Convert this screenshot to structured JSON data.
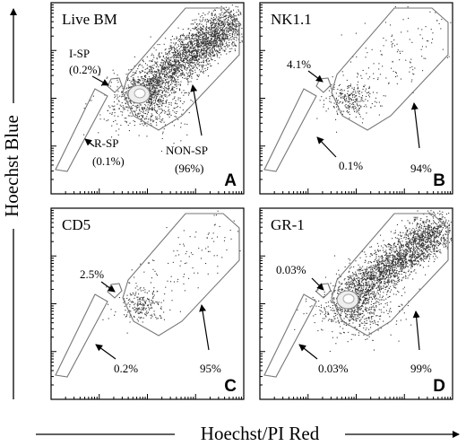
{
  "axes": {
    "y_label": "Hoechst Blue",
    "x_label": "Hoechst/PI Red"
  },
  "panels": [
    {
      "title": "Live BM",
      "letter": "A",
      "labels": [
        "I-SP",
        "(0.2%)",
        "R-SP",
        "(0.1%)",
        "NON-SP",
        "(96%)"
      ]
    },
    {
      "title": "NK1.1",
      "letter": "B",
      "labels": [
        "4.1%",
        "0.1%",
        "94%"
      ]
    },
    {
      "title": "CD5",
      "letter": "C",
      "labels": [
        "2.5%",
        "0.2%",
        "95%"
      ]
    },
    {
      "title": "GR-1",
      "letter": "D",
      "labels": [
        "0.03%",
        "0.03%",
        "99%"
      ]
    }
  ]
}
